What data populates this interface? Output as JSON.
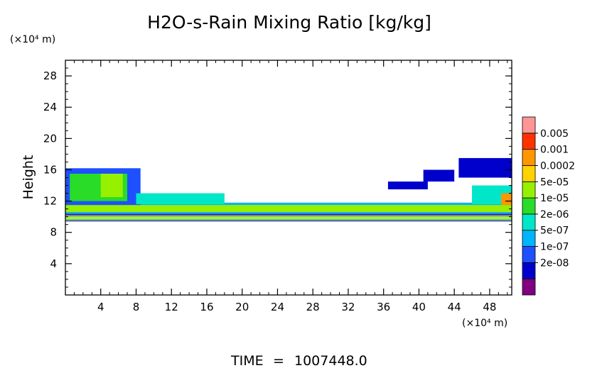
{
  "chart_data": {
    "type": "heatmap",
    "title": "H2O-s-Rain Mixing Ratio [kg/kg]",
    "ylabel": "Height",
    "xlabel": "",
    "y_unit": "(×10⁴ m)",
    "x_unit": "(×10⁴ m)",
    "xlim": [
      0,
      50.5
    ],
    "ylim": [
      0,
      30
    ],
    "x_ticks": [
      4,
      8,
      12,
      16,
      20,
      24,
      28,
      32,
      36,
      40,
      44,
      48
    ],
    "y_ticks": [
      4,
      8,
      12,
      16,
      20,
      24,
      28
    ],
    "colorbar": {
      "levels": [
        "0.005",
        "0.001",
        "0.0002",
        "5e-05",
        "1e-05",
        "2e-06",
        "5e-07",
        "1e-07",
        "2e-08"
      ],
      "colors": [
        "#800080",
        "#0000cd",
        "#1e50ff",
        "#00b4ff",
        "#00e6c8",
        "#28dc28",
        "#96f000",
        "#ffd200",
        "#ff9600",
        "#ff3200",
        "#ff9696"
      ]
    },
    "regions": [
      {
        "level": 0,
        "x": [
          0,
          50.5
        ],
        "y": [
          9.4,
          10.4
        ]
      },
      {
        "level": 4,
        "x": [
          0,
          50.5
        ],
        "y": [
          9.5,
          10.2
        ]
      },
      {
        "level": 7,
        "x": [
          0,
          50.5
        ],
        "y": [
          9.7,
          10.0
        ]
      },
      {
        "level": 3,
        "x": [
          0,
          50.5
        ],
        "y": [
          10.4,
          11.8
        ]
      },
      {
        "level": 6,
        "x": [
          0,
          50.5
        ],
        "y": [
          10.6,
          11.5
        ]
      },
      {
        "level": 2,
        "x": [
          0,
          8.5
        ],
        "y": [
          11.5,
          16.2
        ]
      },
      {
        "level": 5,
        "x": [
          0.5,
          7
        ],
        "y": [
          12,
          15.5
        ]
      },
      {
        "level": 6,
        "x": [
          4,
          6.5
        ],
        "y": [
          12.5,
          15.5
        ]
      },
      {
        "level": 4,
        "x": [
          8,
          18
        ],
        "y": [
          11.6,
          13
        ]
      },
      {
        "level": 1,
        "x": [
          36.5,
          41
        ],
        "y": [
          13.5,
          14.5
        ]
      },
      {
        "level": 1,
        "x": [
          40.5,
          44
        ],
        "y": [
          14.5,
          16
        ]
      },
      {
        "level": 1,
        "x": [
          44.5,
          50.5
        ],
        "y": [
          15,
          17.5
        ]
      },
      {
        "level": 4,
        "x": [
          46,
          50.5
        ],
        "y": [
          11.6,
          14
        ]
      },
      {
        "level": 8,
        "x": [
          49.3,
          50.5
        ],
        "y": [
          11.5,
          13
        ]
      }
    ]
  },
  "footer": {
    "time_label": "TIME",
    "equals": "=",
    "time_value": "1007448.0"
  }
}
